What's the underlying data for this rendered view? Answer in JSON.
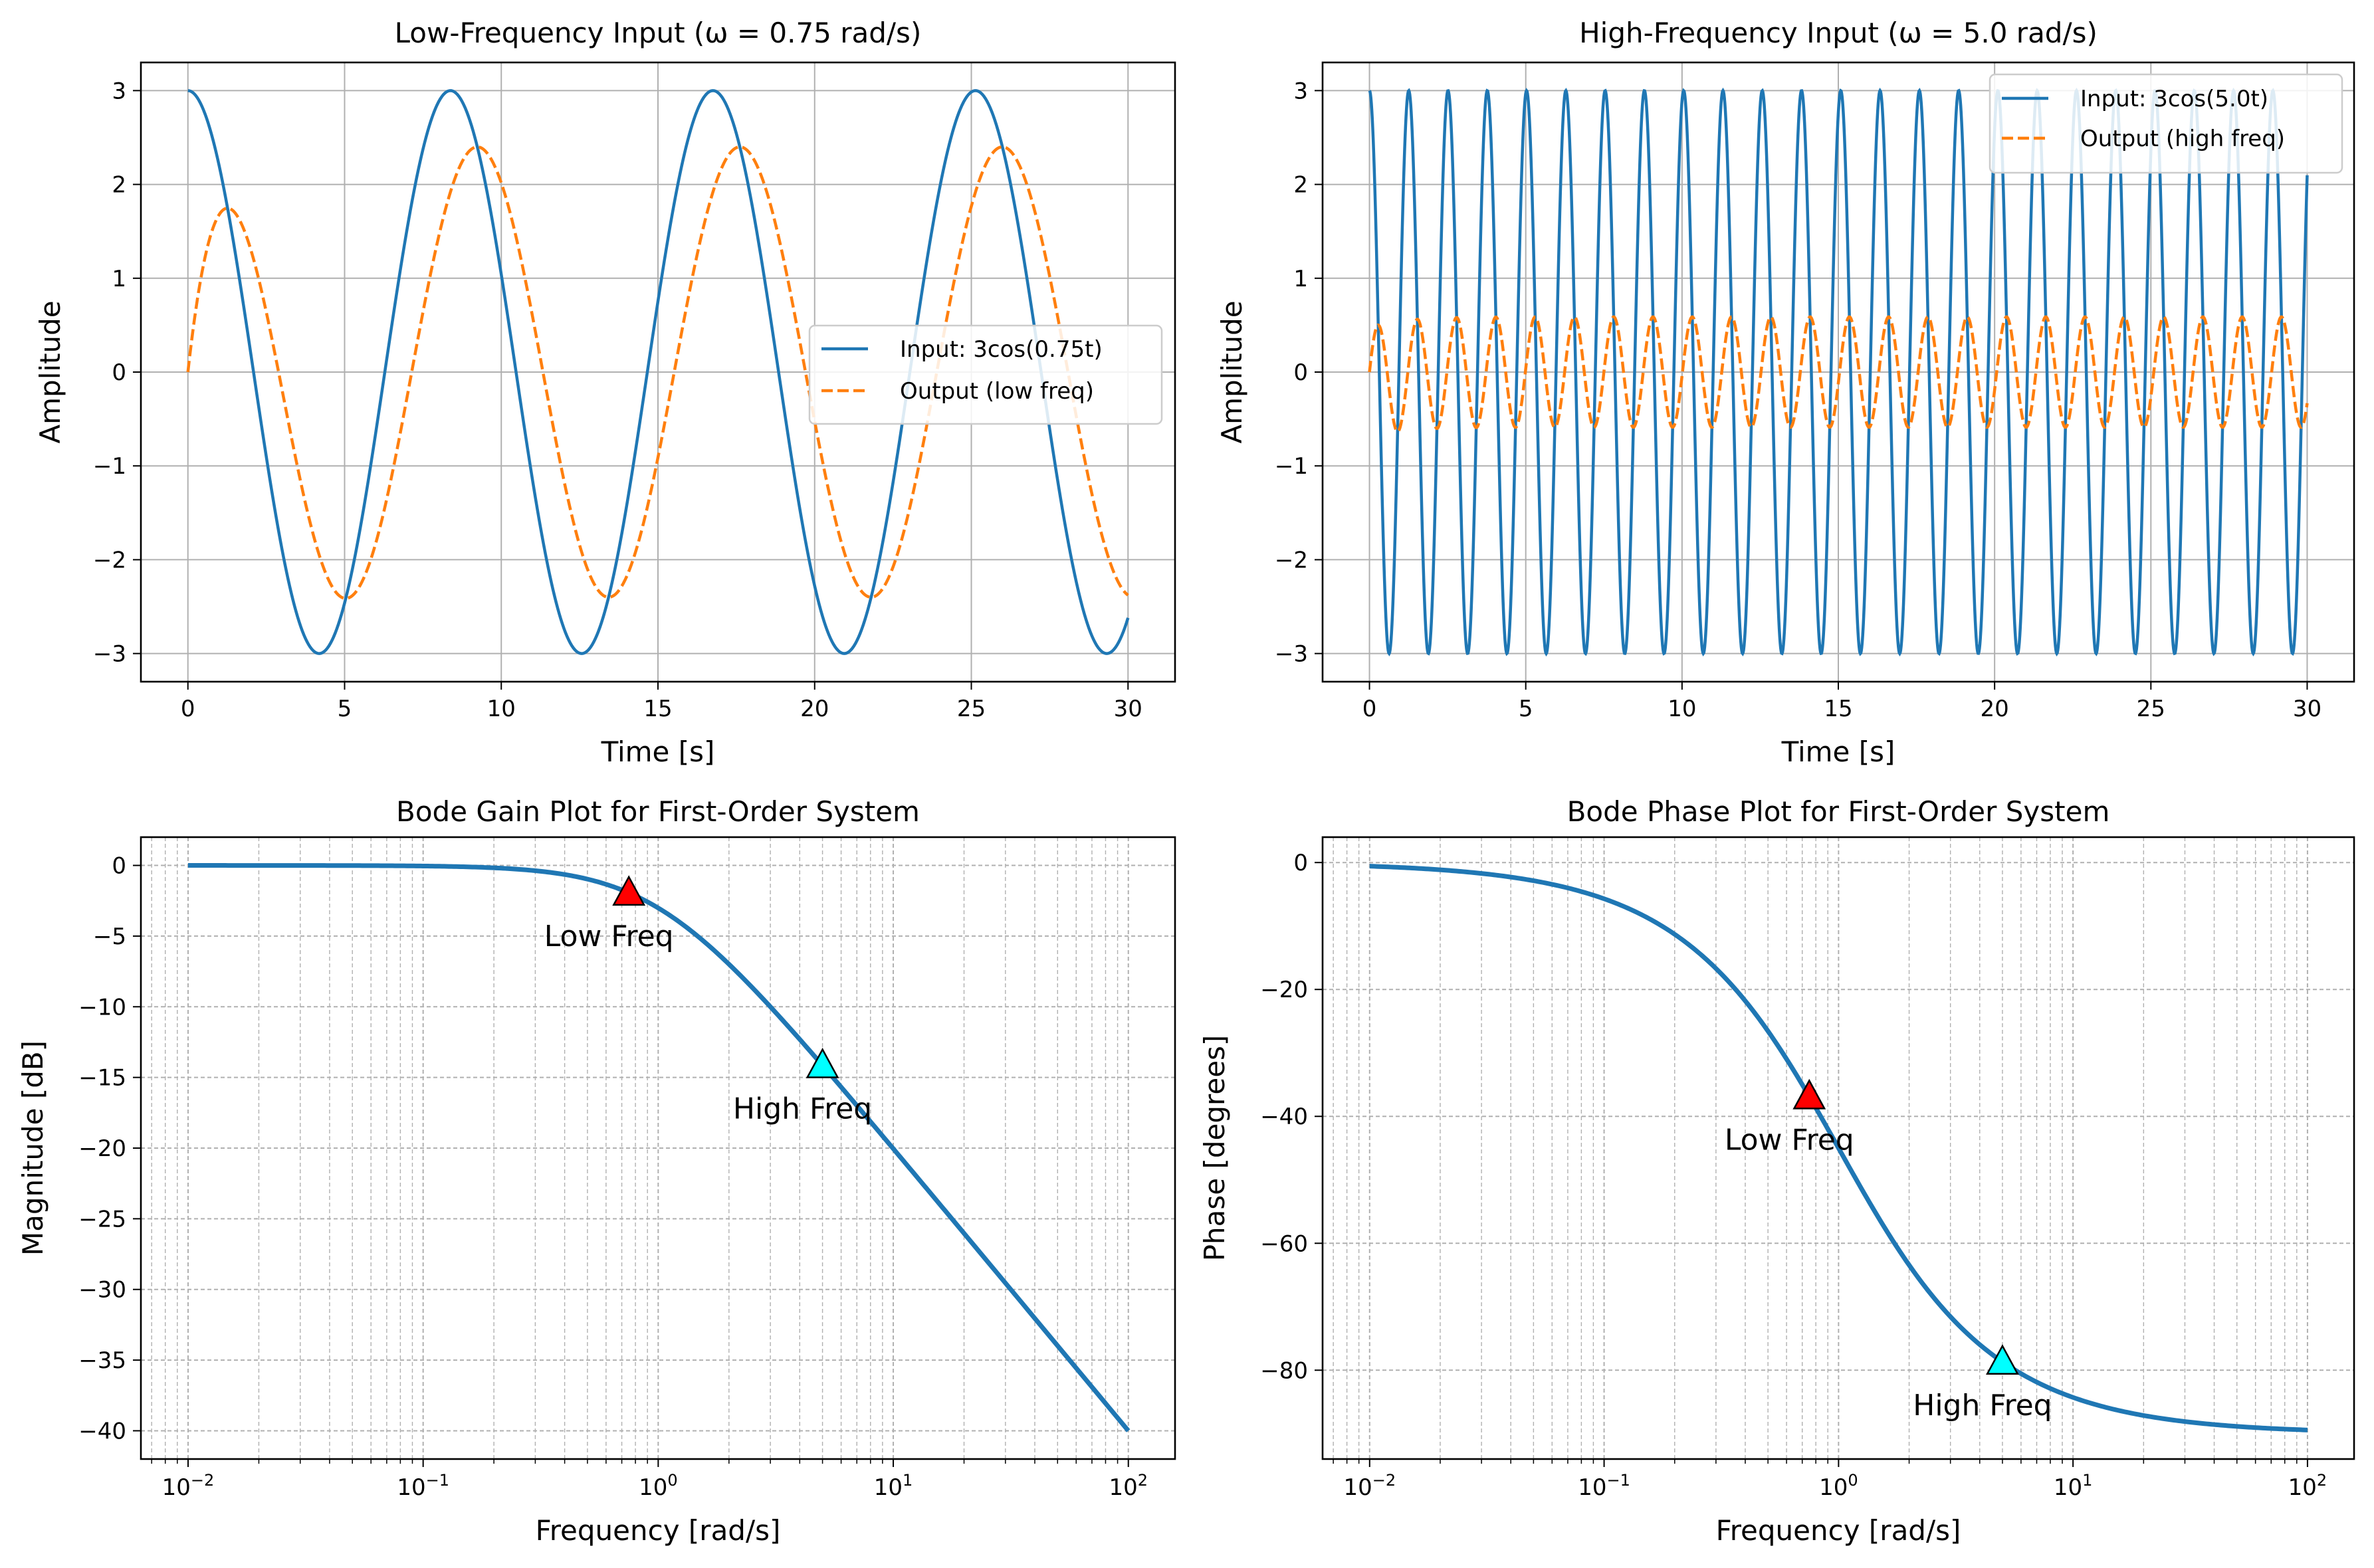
{
  "figure": {
    "colors": {
      "input": "#1f77b4",
      "output": "#ff7f0e",
      "grid": "#b0b0b0",
      "low_marker": "#ff0000",
      "high_marker": "#00ffff"
    }
  },
  "chart_data": [
    {
      "id": "low",
      "type": "line",
      "title": "Low-Frequency Input (ω = 0.75 rad/s)",
      "xlabel": "Time [s]",
      "ylabel": "Amplitude",
      "xlim": [
        -1.5,
        31.5
      ],
      "ylim": [
        -3.3,
        3.3
      ],
      "xticks": [
        0,
        5,
        10,
        15,
        20,
        25,
        30
      ],
      "yticks": [
        -3,
        -2,
        -1,
        0,
        1,
        2,
        3
      ],
      "xtick_labels": [
        "0",
        "5",
        "10",
        "15",
        "20",
        "25",
        "30"
      ],
      "ytick_labels": [
        "−3",
        "−2",
        "−1",
        "0",
        "1",
        "2",
        "3"
      ],
      "grid": true,
      "legend_position": "center-right",
      "series": [
        {
          "name": "Input: 3cos(0.75t)",
          "style": "solid",
          "formula": "3*cos(0.75*t)",
          "x_range": [
            0,
            30
          ],
          "samples": 600
        },
        {
          "name": "Output (low freq)",
          "style": "dashed",
          "formula": "1st-order response, input 3cos(0.75t)",
          "omega": 0.75,
          "amplitude": 3,
          "x_range": [
            0,
            30
          ],
          "samples": 600
        }
      ]
    },
    {
      "id": "high",
      "type": "line",
      "title": "High-Frequency Input (ω = 5.0 rad/s)",
      "xlabel": "Time [s]",
      "ylabel": "Amplitude",
      "xlim": [
        -1.5,
        31.5
      ],
      "ylim": [
        -3.3,
        3.3
      ],
      "xticks": [
        0,
        5,
        10,
        15,
        20,
        25,
        30
      ],
      "yticks": [
        -3,
        -2,
        -1,
        0,
        1,
        2,
        3
      ],
      "xtick_labels": [
        "0",
        "5",
        "10",
        "15",
        "20",
        "25",
        "30"
      ],
      "ytick_labels": [
        "−3",
        "−2",
        "−1",
        "0",
        "1",
        "2",
        "3"
      ],
      "grid": true,
      "legend_position": "top-right",
      "series": [
        {
          "name": "Input: 3cos(5.0t)",
          "style": "solid",
          "formula": "3*cos(5*t)",
          "x_range": [
            0,
            30
          ],
          "samples": 2000
        },
        {
          "name": "Output (high freq)",
          "style": "dashed",
          "formula": "1st-order response, input 3cos(5t)",
          "omega": 5.0,
          "amplitude": 3,
          "x_range": [
            0,
            30
          ],
          "samples": 2000
        }
      ]
    },
    {
      "id": "gain",
      "type": "line",
      "xscale": "log",
      "title": "Bode Gain Plot for First-Order System",
      "xlabel": "Frequency [rad/s]",
      "ylabel": "Magnitude [dB]",
      "xlim": [
        0.0063,
        158
      ],
      "ylim": [
        -42,
        2
      ],
      "xtick_decades": [
        -2,
        -1,
        0,
        1,
        2
      ],
      "xtick_labels": [
        "10",
        "10",
        "10",
        "10",
        "10"
      ],
      "xtick_exponents": [
        "−2",
        "−1",
        "0",
        "1",
        "2"
      ],
      "yticks": [
        -40,
        -35,
        -30,
        -25,
        -20,
        -15,
        -10,
        -5,
        0
      ],
      "ytick_labels": [
        "−40",
        "−35",
        "−30",
        "−25",
        "−20",
        "−15",
        "−10",
        "−5",
        "0"
      ],
      "grid": "dashed",
      "series": [
        {
          "name": "Magnitude",
          "formula": "-10*log10(1+w^2)",
          "w_range": [
            0.01,
            100
          ],
          "samples": 400
        }
      ],
      "markers": [
        {
          "label": "Low Freq",
          "w": 0.75,
          "value": -1.94,
          "color": "low_marker"
        },
        {
          "label": "High Freq",
          "w": 5.0,
          "value": -14.15,
          "color": "high_marker"
        }
      ]
    },
    {
      "id": "phase",
      "type": "line",
      "xscale": "log",
      "title": "Bode Phase Plot for First-Order System",
      "xlabel": "Frequency [rad/s]",
      "ylabel": "Phase [degrees]",
      "xlim": [
        0.0063,
        158
      ],
      "ylim": [
        -94,
        4
      ],
      "xtick_decades": [
        -2,
        -1,
        0,
        1,
        2
      ],
      "xtick_labels": [
        "10",
        "10",
        "10",
        "10",
        "10"
      ],
      "xtick_exponents": [
        "−2",
        "−1",
        "0",
        "1",
        "2"
      ],
      "yticks": [
        -80,
        -60,
        -40,
        -20,
        0
      ],
      "ytick_labels": [
        "−80",
        "−60",
        "−40",
        "−20",
        "0"
      ],
      "grid": "dashed",
      "series": [
        {
          "name": "Phase",
          "formula": "-atan(w) in degrees",
          "w_range": [
            0.01,
            100
          ],
          "samples": 400
        }
      ],
      "markers": [
        {
          "label": "Low Freq",
          "w": 0.75,
          "value": -36.87,
          "color": "low_marker"
        },
        {
          "label": "High Freq",
          "w": 5.0,
          "value": -78.69,
          "color": "high_marker"
        }
      ]
    }
  ]
}
